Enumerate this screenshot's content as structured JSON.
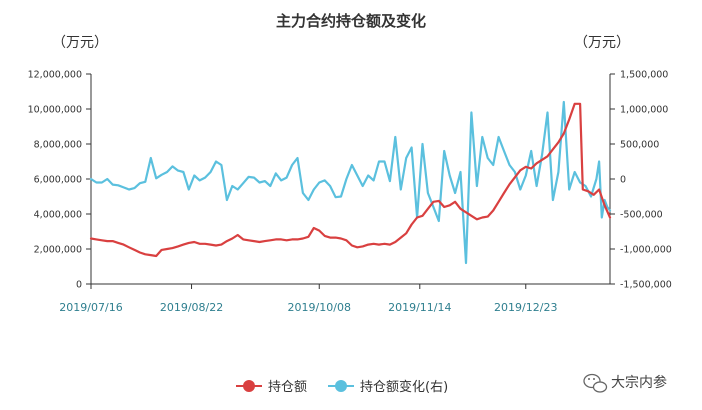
{
  "chart_data": {
    "type": "line",
    "title": "主力合约持仓额及变化",
    "y_left_unit": "（万元）",
    "y_right_unit": "（万元）",
    "ylim_left": [
      0,
      12000000
    ],
    "ylim_right": [
      -1500000,
      1500000
    ],
    "yticks_left": [
      "0",
      "2,000,000",
      "4,000,000",
      "6,000,000",
      "8,000,000",
      "10,000,000",
      "12,000,000"
    ],
    "yticks_right": [
      "-1,500,000",
      "-1,000,000",
      "-500,000",
      "0",
      "500,000",
      "1,000,000",
      "1,500,000"
    ],
    "x_start": "2019-07-16",
    "x_end": "2020-01-23",
    "x_tick_labels": [
      "2019/07/16",
      "2019/08/22",
      "2019/10/08",
      "2019/11/14",
      "2019/12/23"
    ],
    "x_tick_dates": [
      "2019-07-16",
      "2019-08-22",
      "2019-10-08",
      "2019-11-14",
      "2019-12-23"
    ],
    "legend_position": "bottom",
    "series": [
      {
        "name": "持仓额",
        "axis": "left",
        "color": "#d94040",
        "points": [
          [
            "2019-07-16",
            2600000
          ],
          [
            "2019-07-18",
            2550000
          ],
          [
            "2019-07-20",
            2500000
          ],
          [
            "2019-07-22",
            2450000
          ],
          [
            "2019-07-24",
            2450000
          ],
          [
            "2019-07-26",
            2350000
          ],
          [
            "2019-07-28",
            2250000
          ],
          [
            "2019-07-30",
            2100000
          ],
          [
            "2019-08-01",
            1950000
          ],
          [
            "2019-08-03",
            1800000
          ],
          [
            "2019-08-05",
            1700000
          ],
          [
            "2019-08-07",
            1650000
          ],
          [
            "2019-08-09",
            1600000
          ],
          [
            "2019-08-11",
            1950000
          ],
          [
            "2019-08-13",
            2000000
          ],
          [
            "2019-08-15",
            2050000
          ],
          [
            "2019-08-17",
            2150000
          ],
          [
            "2019-08-19",
            2250000
          ],
          [
            "2019-08-21",
            2350000
          ],
          [
            "2019-08-23",
            2400000
          ],
          [
            "2019-08-25",
            2300000
          ],
          [
            "2019-08-27",
            2300000
          ],
          [
            "2019-08-29",
            2250000
          ],
          [
            "2019-08-31",
            2200000
          ],
          [
            "2019-09-02",
            2250000
          ],
          [
            "2019-09-04",
            2450000
          ],
          [
            "2019-09-06",
            2600000
          ],
          [
            "2019-09-08",
            2800000
          ],
          [
            "2019-09-10",
            2550000
          ],
          [
            "2019-09-12",
            2500000
          ],
          [
            "2019-09-14",
            2450000
          ],
          [
            "2019-09-16",
            2400000
          ],
          [
            "2019-09-18",
            2450000
          ],
          [
            "2019-09-20",
            2500000
          ],
          [
            "2019-09-22",
            2550000
          ],
          [
            "2019-09-24",
            2550000
          ],
          [
            "2019-09-26",
            2500000
          ],
          [
            "2019-09-28",
            2550000
          ],
          [
            "2019-09-30",
            2550000
          ],
          [
            "2019-10-02",
            2600000
          ],
          [
            "2019-10-04",
            2700000
          ],
          [
            "2019-10-06",
            3200000
          ],
          [
            "2019-10-08",
            3050000
          ],
          [
            "2019-10-10",
            2750000
          ],
          [
            "2019-10-12",
            2650000
          ],
          [
            "2019-10-14",
            2650000
          ],
          [
            "2019-10-16",
            2600000
          ],
          [
            "2019-10-18",
            2500000
          ],
          [
            "2019-10-20",
            2200000
          ],
          [
            "2019-10-22",
            2100000
          ],
          [
            "2019-10-24",
            2150000
          ],
          [
            "2019-10-26",
            2250000
          ],
          [
            "2019-10-28",
            2300000
          ],
          [
            "2019-10-30",
            2250000
          ],
          [
            "2019-11-01",
            2300000
          ],
          [
            "2019-11-03",
            2250000
          ],
          [
            "2019-11-05",
            2400000
          ],
          [
            "2019-11-07",
            2650000
          ],
          [
            "2019-11-09",
            2900000
          ],
          [
            "2019-11-11",
            3400000
          ],
          [
            "2019-11-13",
            3800000
          ],
          [
            "2019-11-15",
            3900000
          ],
          [
            "2019-11-17",
            4300000
          ],
          [
            "2019-11-19",
            4700000
          ],
          [
            "2019-11-21",
            4750000
          ],
          [
            "2019-11-23",
            4400000
          ],
          [
            "2019-11-25",
            4500000
          ],
          [
            "2019-11-27",
            4700000
          ],
          [
            "2019-11-29",
            4300000
          ],
          [
            "2019-12-01",
            4100000
          ],
          [
            "2019-12-03",
            3900000
          ],
          [
            "2019-12-05",
            3700000
          ],
          [
            "2019-12-07",
            3800000
          ],
          [
            "2019-12-09",
            3850000
          ],
          [
            "2019-12-11",
            4200000
          ],
          [
            "2019-12-13",
            4700000
          ],
          [
            "2019-12-15",
            5200000
          ],
          [
            "2019-12-17",
            5700000
          ],
          [
            "2019-12-19",
            6100000
          ],
          [
            "2019-12-21",
            6500000
          ],
          [
            "2019-12-23",
            6700000
          ],
          [
            "2019-12-25",
            6600000
          ],
          [
            "2019-12-27",
            6900000
          ],
          [
            "2019-12-29",
            7100000
          ],
          [
            "2019-12-31",
            7300000
          ],
          [
            "2020-01-02",
            7700000
          ],
          [
            "2020-01-04",
            8100000
          ],
          [
            "2020-01-06",
            8600000
          ],
          [
            "2020-01-08",
            9400000
          ],
          [
            "2020-01-10",
            10300000
          ],
          [
            "2020-01-12",
            10300000
          ],
          [
            "2020-01-13",
            5400000
          ],
          [
            "2020-01-15",
            5300000
          ],
          [
            "2020-01-17",
            5100000
          ],
          [
            "2020-01-19",
            5400000
          ],
          [
            "2020-01-21",
            4500000
          ],
          [
            "2020-01-23",
            3800000
          ]
        ]
      },
      {
        "name": "持仓额变化(右)",
        "axis": "right",
        "color": "#5bc0de",
        "points": [
          [
            "2019-07-16",
            0
          ],
          [
            "2019-07-18",
            -50000
          ],
          [
            "2019-07-20",
            -50000
          ],
          [
            "2019-07-22",
            0
          ],
          [
            "2019-07-24",
            -80000
          ],
          [
            "2019-07-26",
            -90000
          ],
          [
            "2019-07-28",
            -120000
          ],
          [
            "2019-07-30",
            -150000
          ],
          [
            "2019-08-01",
            -130000
          ],
          [
            "2019-08-03",
            -60000
          ],
          [
            "2019-08-05",
            -40000
          ],
          [
            "2019-08-07",
            300000
          ],
          [
            "2019-08-09",
            10000
          ],
          [
            "2019-08-11",
            60000
          ],
          [
            "2019-08-13",
            100000
          ],
          [
            "2019-08-15",
            180000
          ],
          [
            "2019-08-17",
            120000
          ],
          [
            "2019-08-19",
            100000
          ],
          [
            "2019-08-21",
            -150000
          ],
          [
            "2019-08-23",
            50000
          ],
          [
            "2019-08-25",
            -20000
          ],
          [
            "2019-08-27",
            20000
          ],
          [
            "2019-08-29",
            100000
          ],
          [
            "2019-08-31",
            250000
          ],
          [
            "2019-09-02",
            200000
          ],
          [
            "2019-09-04",
            -300000
          ],
          [
            "2019-09-06",
            -100000
          ],
          [
            "2019-09-08",
            -150000
          ],
          [
            "2019-09-10",
            -60000
          ],
          [
            "2019-09-12",
            30000
          ],
          [
            "2019-09-14",
            20000
          ],
          [
            "2019-09-16",
            -50000
          ],
          [
            "2019-09-18",
            -30000
          ],
          [
            "2019-09-20",
            -100000
          ],
          [
            "2019-09-22",
            80000
          ],
          [
            "2019-09-24",
            -20000
          ],
          [
            "2019-09-26",
            20000
          ],
          [
            "2019-09-28",
            200000
          ],
          [
            "2019-09-30",
            300000
          ],
          [
            "2019-10-02",
            -200000
          ],
          [
            "2019-10-04",
            -300000
          ],
          [
            "2019-10-06",
            -150000
          ],
          [
            "2019-10-08",
            -50000
          ],
          [
            "2019-10-10",
            -20000
          ],
          [
            "2019-10-12",
            -100000
          ],
          [
            "2019-10-14",
            -260000
          ],
          [
            "2019-10-16",
            -250000
          ],
          [
            "2019-10-18",
            0
          ],
          [
            "2019-10-20",
            200000
          ],
          [
            "2019-10-22",
            50000
          ],
          [
            "2019-10-24",
            -100000
          ],
          [
            "2019-10-26",
            50000
          ],
          [
            "2019-10-28",
            -20000
          ],
          [
            "2019-10-30",
            250000
          ],
          [
            "2019-11-01",
            250000
          ],
          [
            "2019-11-03",
            -30000
          ],
          [
            "2019-11-05",
            600000
          ],
          [
            "2019-11-07",
            -150000
          ],
          [
            "2019-11-09",
            300000
          ],
          [
            "2019-11-11",
            450000
          ],
          [
            "2019-11-13",
            -550000
          ],
          [
            "2019-11-15",
            500000
          ],
          [
            "2019-11-17",
            -200000
          ],
          [
            "2019-11-19",
            -400000
          ],
          [
            "2019-11-21",
            -600000
          ],
          [
            "2019-11-23",
            400000
          ],
          [
            "2019-11-25",
            50000
          ],
          [
            "2019-11-27",
            -200000
          ],
          [
            "2019-11-29",
            100000
          ],
          [
            "2019-12-01",
            -1200000
          ],
          [
            "2019-12-03",
            950000
          ],
          [
            "2019-12-05",
            -100000
          ],
          [
            "2019-12-07",
            600000
          ],
          [
            "2019-12-09",
            300000
          ],
          [
            "2019-12-11",
            200000
          ],
          [
            "2019-12-13",
            600000
          ],
          [
            "2019-12-15",
            400000
          ],
          [
            "2019-12-17",
            200000
          ],
          [
            "2019-12-19",
            100000
          ],
          [
            "2019-12-21",
            -150000
          ],
          [
            "2019-12-23",
            50000
          ],
          [
            "2019-12-25",
            400000
          ],
          [
            "2019-12-27",
            -100000
          ],
          [
            "2019-12-29",
            350000
          ],
          [
            "2019-12-31",
            950000
          ],
          [
            "2020-01-02",
            -300000
          ],
          [
            "2020-01-04",
            100000
          ],
          [
            "2020-01-06",
            1100000
          ],
          [
            "2020-01-08",
            -150000
          ],
          [
            "2020-01-10",
            100000
          ],
          [
            "2020-01-12",
            -50000
          ],
          [
            "2020-01-14",
            -100000
          ],
          [
            "2020-01-16",
            -250000
          ],
          [
            "2020-01-18",
            0
          ],
          [
            "2020-01-19",
            250000
          ],
          [
            "2020-01-20",
            -550000
          ],
          [
            "2020-01-21",
            -300000
          ],
          [
            "2020-01-22",
            -400000
          ],
          [
            "2020-01-23",
            -450000
          ]
        ]
      }
    ]
  },
  "watermark": {
    "text": "大宗内参",
    "icon": "wechat-icon"
  }
}
